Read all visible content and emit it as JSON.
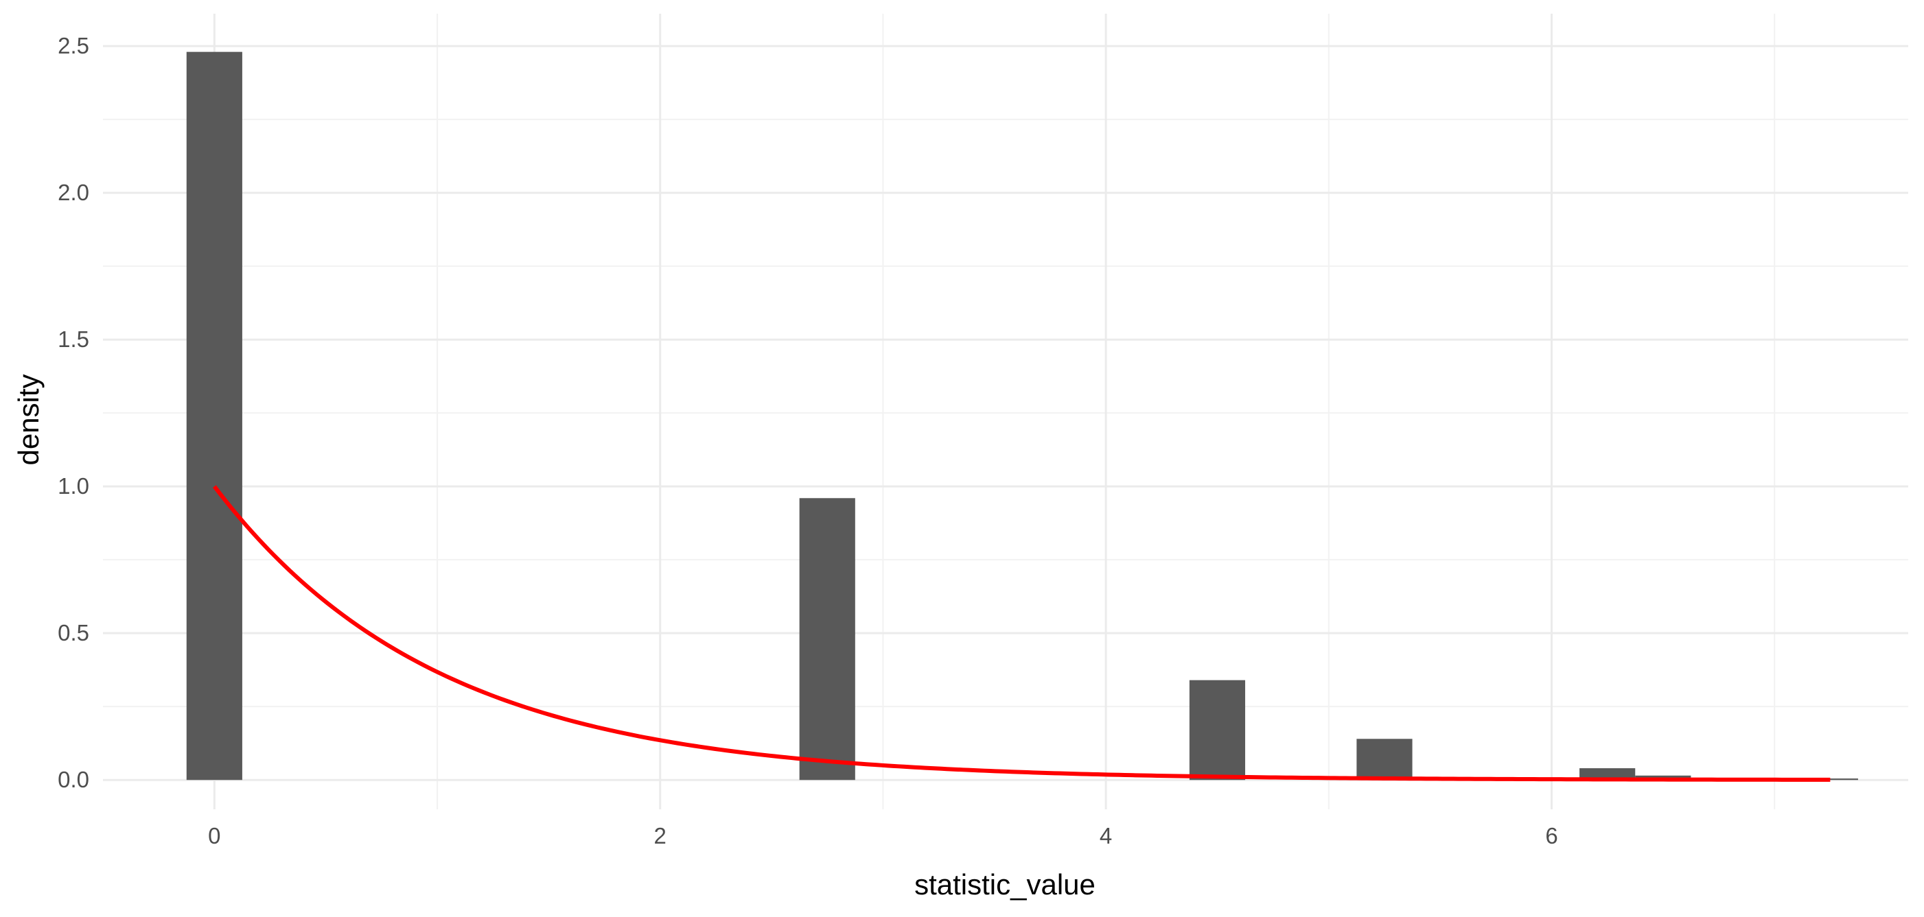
{
  "chart_data": {
    "type": "bar",
    "title": "",
    "xlabel": "statistic_value",
    "ylabel": "density",
    "xlim": [
      -0.5,
      7.6
    ],
    "ylim": [
      -0.1,
      2.61
    ],
    "x_ticks": [
      0,
      2,
      4,
      6
    ],
    "y_ticks": [
      0.0,
      0.5,
      1.0,
      1.5,
      2.0,
      2.5
    ],
    "x_tick_labels": [
      "0",
      "2",
      "4",
      "6"
    ],
    "y_tick_labels": [
      "0.0",
      "0.5",
      "1.0",
      "1.5",
      "2.0",
      "2.5"
    ],
    "grid": true,
    "bin_width": 0.25,
    "bars": [
      {
        "x": 0.0,
        "density": 2.48
      },
      {
        "x": 2.75,
        "density": 0.96
      },
      {
        "x": 4.5,
        "density": 0.34
      },
      {
        "x": 5.25,
        "density": 0.14
      },
      {
        "x": 6.25,
        "density": 0.04
      },
      {
        "x": 6.5,
        "density": 0.015
      },
      {
        "x": 7.25,
        "density": 0.005
      }
    ],
    "curve": {
      "type": "line",
      "function": "exp(-x)",
      "x_range": [
        0,
        7.25
      ],
      "color": "#ff0000"
    },
    "colors": {
      "bar": "#595959",
      "grid_major": "#ebebeb",
      "grid_minor": "#f2f2f2",
      "curve": "#ff0000"
    }
  }
}
